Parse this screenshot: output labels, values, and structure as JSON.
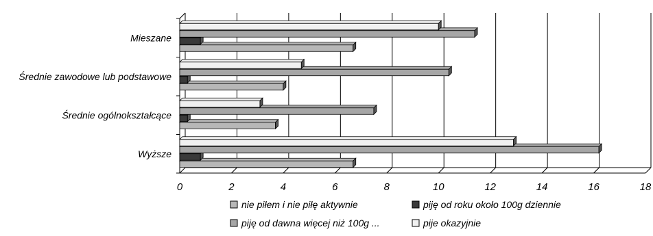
{
  "chart_data": {
    "type": "bar",
    "orientation": "horizontal",
    "three_d": true,
    "categories": [
      "Mieszane",
      "Średnie zawodowe lub podstawowe",
      "Średnie ogólnokształcące",
      "Wyższe"
    ],
    "series": [
      {
        "name": "nie piłem i nie piłę aktywnie",
        "color": "#b7b7b7",
        "values": [
          6.7,
          4.0,
          3.7,
          6.7
        ]
      },
      {
        "name": "piję od roku około 100g dziennie",
        "color": "#3a3a3a",
        "values": [
          0.8,
          0.3,
          0.3,
          0.8
        ]
      },
      {
        "name": "piję od dawna więcej niż 100g ...",
        "color": "#a6a6a6",
        "values": [
          11.4,
          10.4,
          7.5,
          16.2
        ]
      },
      {
        "name": "pije okazyjnie",
        "color": "#f0f0f0",
        "values": [
          10.0,
          4.7,
          3.1,
          12.9
        ]
      }
    ],
    "x_ticks": [
      "0",
      "2",
      "4",
      "6",
      "8",
      "10",
      "12",
      "14",
      "16",
      "18"
    ],
    "xlim": [
      0,
      18
    ],
    "grid": true,
    "legend_position": "bottom"
  }
}
